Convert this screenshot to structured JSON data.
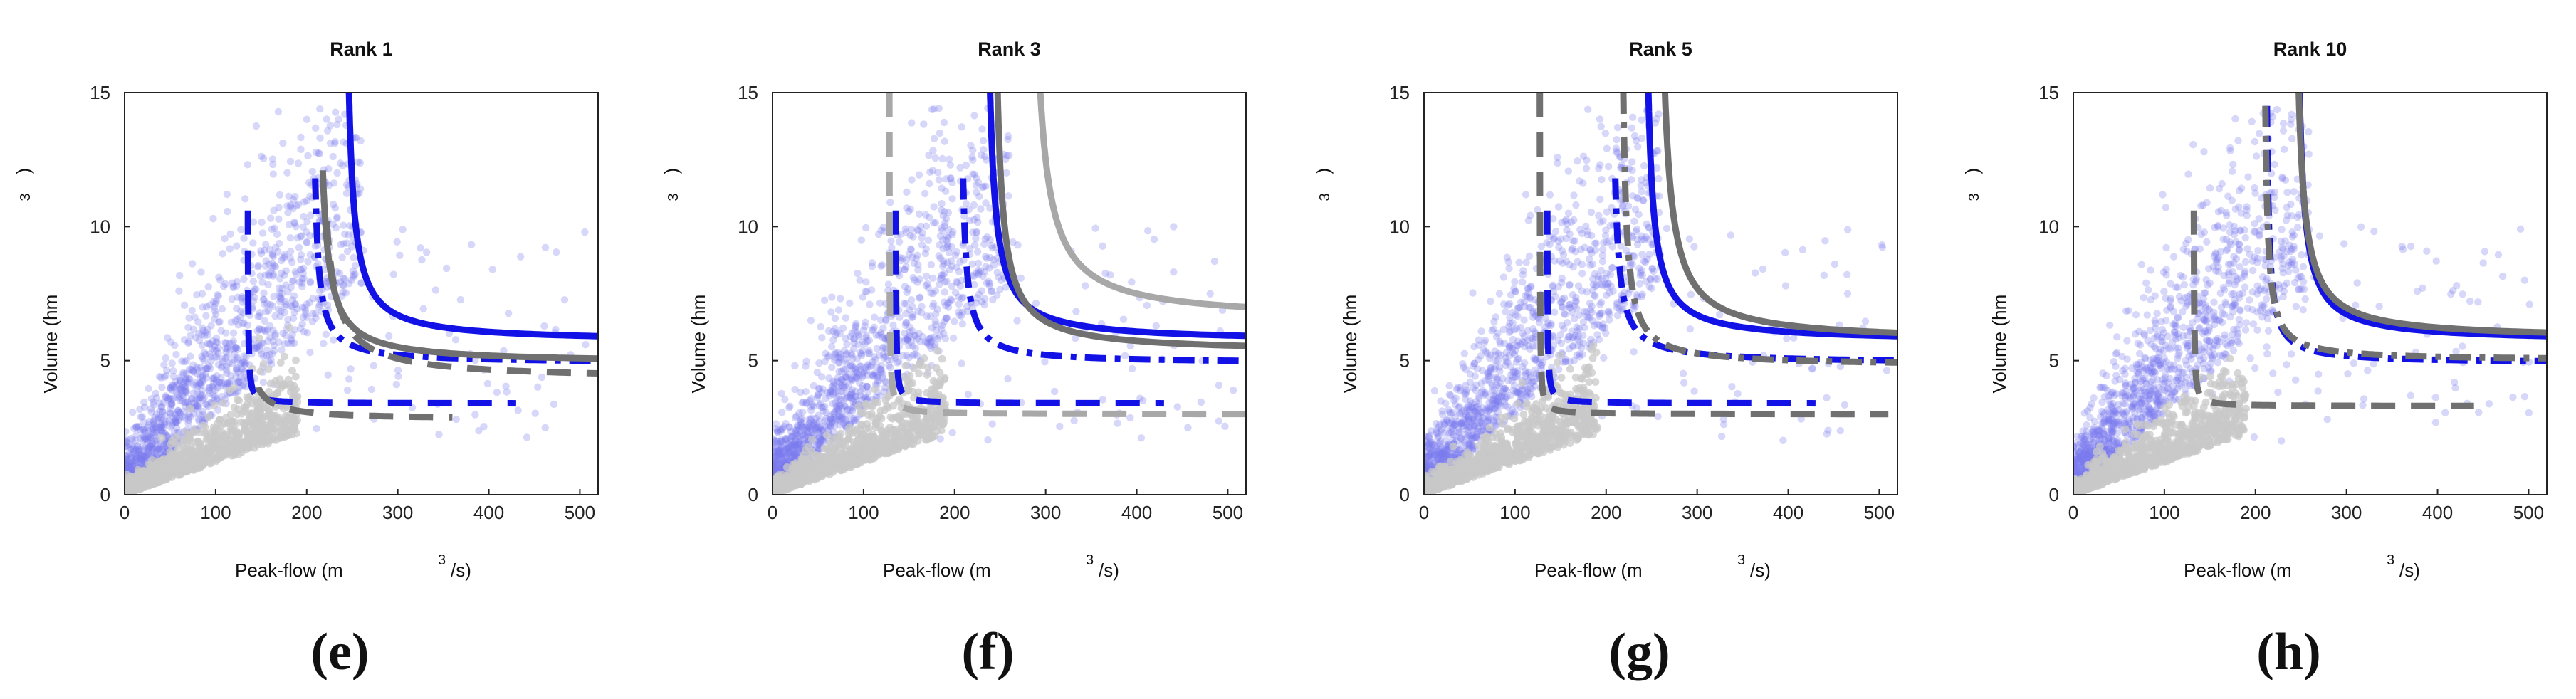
{
  "colors": {
    "blue": "#1212e6",
    "dark_gray": "#707070",
    "light_gray": "#a8a8a8",
    "scatter_blue": "#7b7bf0",
    "scatter_gray": "#c8c8c8"
  },
  "chart_data": [
    {
      "type": "scatter",
      "title": "Rank 1",
      "panel_label": "(e)",
      "xlabel": "Peak-flow (m",
      "xlabel_sup": "3",
      "xlabel_suffix": "/s)",
      "ylabel": "Volume (hm",
      "ylabel_sup": "3",
      "ylabel_suffix": ")",
      "xlim": [
        0,
        520
      ],
      "ylim": [
        0,
        15
      ],
      "xticks": [
        0,
        100,
        200,
        300,
        400,
        500
      ],
      "yticks": [
        0,
        5,
        10,
        15
      ],
      "curves": [
        {
          "name": "blue-solid",
          "color": "blue",
          "style": "solid",
          "kind": "hyperbola",
          "x0": 240,
          "y0": 5.7,
          "k": 60,
          "y_end": 15,
          "x_end": 520
        },
        {
          "name": "blue-dashdot",
          "color": "blue",
          "style": "dashdot",
          "kind": "hyperbola",
          "x0": 205,
          "y0": 4.9,
          "k": 30,
          "y_end": 11.8,
          "x_end": 520
        },
        {
          "name": "blue-dashed",
          "color": "blue",
          "style": "dashed",
          "kind": "hyperbola",
          "x0": 135,
          "y0": 3.4,
          "k": 3,
          "y_end": 10.6,
          "x_end": 430
        },
        {
          "name": "gray-solid",
          "color": "dark_gray",
          "style": "solid",
          "kind": "hyperbola",
          "x0": 210,
          "y0": 4.9,
          "k": 55,
          "y_end": 12.1,
          "x_end": 520
        },
        {
          "name": "gray-dashed",
          "color": "dark_gray",
          "style": "dashed",
          "kind": "hyperbola",
          "x0": 210,
          "y0": 4.3,
          "k": 70,
          "y_end": 10.2,
          "x_end": 520
        },
        {
          "name": "gray-dashed-low",
          "color": "dark_gray",
          "style": "dashed",
          "kind": "hyperbola",
          "x0": 130,
          "y0": 2.8,
          "k": 20,
          "y_end": 4.0,
          "x_end": 360
        }
      ]
    },
    {
      "type": "scatter",
      "title": "Rank 3",
      "panel_label": "(f)",
      "xlabel": "Peak-flow (m",
      "xlabel_sup": "3",
      "xlabel_suffix": "/s)",
      "ylabel": "Volume (hm",
      "ylabel_sup": "3",
      "ylabel_suffix": ")",
      "xlim": [
        0,
        520
      ],
      "ylim": [
        0,
        15
      ],
      "xticks": [
        0,
        100,
        200,
        300,
        400,
        500
      ],
      "yticks": [
        0,
        5,
        10,
        15
      ],
      "curves": [
        {
          "name": "blue-solid",
          "color": "blue",
          "style": "solid",
          "kind": "hyperbola",
          "x0": 232,
          "y0": 5.7,
          "k": 65,
          "y_end": 15,
          "x_end": 520
        },
        {
          "name": "blue-dashdot",
          "color": "blue",
          "style": "dashdot",
          "kind": "hyperbola",
          "x0": 205,
          "y0": 4.9,
          "k": 30,
          "y_end": 11.8,
          "x_end": 520
        },
        {
          "name": "blue-dashed",
          "color": "blue",
          "style": "dashed",
          "kind": "hyperbola",
          "x0": 135,
          "y0": 3.4,
          "k": 3,
          "y_end": 10.6,
          "x_end": 430
        },
        {
          "name": "lightgray-solid",
          "color": "light_gray",
          "style": "solid",
          "kind": "hyperbola",
          "x0": 280,
          "y0": 6.5,
          "k": 120,
          "y_end": 15,
          "x_end": 520
        },
        {
          "name": "gray-solid",
          "color": "dark_gray",
          "style": "solid",
          "kind": "hyperbola",
          "x0": 240,
          "y0": 5.3,
          "k": 70,
          "y_end": 15,
          "x_end": 520
        },
        {
          "name": "lightgray-dashed",
          "color": "light_gray",
          "style": "dashed",
          "kind": "hyperbola",
          "x0": 128,
          "y0": 3.0,
          "k": 4,
          "y_end": 15,
          "x_end": 520
        }
      ]
    },
    {
      "type": "scatter",
      "title": "Rank 5",
      "panel_label": "(g)",
      "xlabel": "Peak-flow (m",
      "xlabel_sup": "3",
      "xlabel_suffix": "/s)",
      "ylabel": "Volume (hm",
      "ylabel_sup": "3",
      "ylabel_suffix": ")",
      "xlim": [
        0,
        520
      ],
      "ylim": [
        0,
        15
      ],
      "xticks": [
        0,
        100,
        200,
        300,
        400,
        500
      ],
      "yticks": [
        0,
        5,
        10,
        15
      ],
      "curves": [
        {
          "name": "blue-solid",
          "color": "blue",
          "style": "solid",
          "kind": "hyperbola",
          "x0": 240,
          "y0": 5.7,
          "k": 60,
          "y_end": 15,
          "x_end": 520
        },
        {
          "name": "blue-dashdot",
          "color": "blue",
          "style": "dashdot",
          "kind": "hyperbola",
          "x0": 205,
          "y0": 4.9,
          "k": 35,
          "y_end": 11.8,
          "x_end": 520
        },
        {
          "name": "blue-dashed",
          "color": "blue",
          "style": "dashed",
          "kind": "hyperbola",
          "x0": 135,
          "y0": 3.4,
          "k": 3,
          "y_end": 10.6,
          "x_end": 430
        },
        {
          "name": "gray-solid",
          "color": "dark_gray",
          "style": "solid",
          "kind": "hyperbola",
          "x0": 255,
          "y0": 5.7,
          "k": 90,
          "y_end": 15,
          "x_end": 520
        },
        {
          "name": "gray-dashdot",
          "color": "dark_gray",
          "style": "dashdot",
          "kind": "hyperbola",
          "x0": 215,
          "y0": 4.8,
          "k": 40,
          "y_end": 15,
          "x_end": 520
        },
        {
          "name": "gray-dashed",
          "color": "dark_gray",
          "style": "dashed",
          "kind": "hyperbola",
          "x0": 127,
          "y0": 3.0,
          "k": 3,
          "y_end": 15,
          "x_end": 510
        }
      ]
    },
    {
      "type": "scatter",
      "title": "Rank 10",
      "panel_label": "(h)",
      "xlabel": "Peak-flow (m",
      "xlabel_sup": "3",
      "xlabel_suffix": "/s)",
      "ylabel": "Volume (hm",
      "ylabel_sup": "3",
      "ylabel_suffix": ")",
      "xlim": [
        0,
        520
      ],
      "ylim": [
        0,
        15
      ],
      "xticks": [
        0,
        100,
        200,
        300,
        400,
        500
      ],
      "yticks": [
        0,
        5,
        10,
        15
      ],
      "curves": [
        {
          "name": "blue-solid",
          "color": "blue",
          "style": "solid",
          "kind": "hyperbola",
          "x0": 242,
          "y0": 5.7,
          "k": 60,
          "y_end": 15,
          "x_end": 520
        },
        {
          "name": "blue-dashdot",
          "color": "blue",
          "style": "dashdot",
          "kind": "hyperbola",
          "x0": 210,
          "y0": 4.9,
          "k": 25,
          "y_end": 14.5,
          "x_end": 520
        },
        {
          "name": "gray-solid",
          "color": "dark_gray",
          "style": "solid",
          "kind": "hyperbola",
          "x0": 240,
          "y0": 5.8,
          "k": 70,
          "y_end": 15,
          "x_end": 520
        },
        {
          "name": "gray-dashdot",
          "color": "dark_gray",
          "style": "dashdot",
          "kind": "hyperbola",
          "x0": 208,
          "y0": 5.0,
          "k": 28,
          "y_end": 14.5,
          "x_end": 520
        },
        {
          "name": "gray-dashed",
          "color": "dark_gray",
          "style": "dashed",
          "kind": "hyperbola",
          "x0": 132,
          "y0": 3.3,
          "k": 3,
          "y_end": 10.6,
          "x_end": 440
        }
      ]
    }
  ]
}
